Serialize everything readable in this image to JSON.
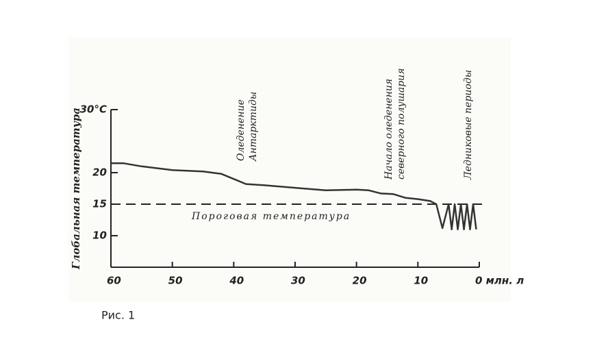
{
  "chart_data": {
    "type": "line",
    "y_label": "Глобальная температура",
    "x": [
      60,
      58,
      55,
      50,
      45,
      42,
      40,
      38,
      35,
      30,
      25,
      20,
      18,
      16,
      14,
      12,
      10,
      8,
      7,
      6,
      5,
      4.5,
      4,
      3.5,
      3,
      2.5,
      2,
      1.5,
      1,
      0.5
    ],
    "values": [
      21.5,
      21.5,
      21,
      20.4,
      20.2,
      19.8,
      19,
      18.2,
      18,
      17.6,
      17.2,
      17.3,
      17.2,
      16.7,
      16.6,
      16,
      15.8,
      15.5,
      15,
      11.2,
      15,
      11,
      15,
      11,
      15,
      11,
      15,
      11,
      15,
      11
    ],
    "color": "#333333",
    "xlim": [
      60,
      0
    ],
    "xticks": [
      60,
      50,
      40,
      30,
      20,
      10,
      {
        "value": 0,
        "label": "0 млн. л"
      }
    ],
    "ylim": [
      5,
      30
    ],
    "yticks": [
      10,
      15,
      20,
      {
        "value": 30,
        "label": "30°C"
      }
    ],
    "threshold": {
      "value": 15,
      "label": "Пороговая температура"
    },
    "annotations": [
      "Оледенение",
      "Антарктиды",
      "Начало оледенения",
      "северного полушария",
      "Ледниковые периоды"
    ]
  },
  "caption": "Рис. 1"
}
